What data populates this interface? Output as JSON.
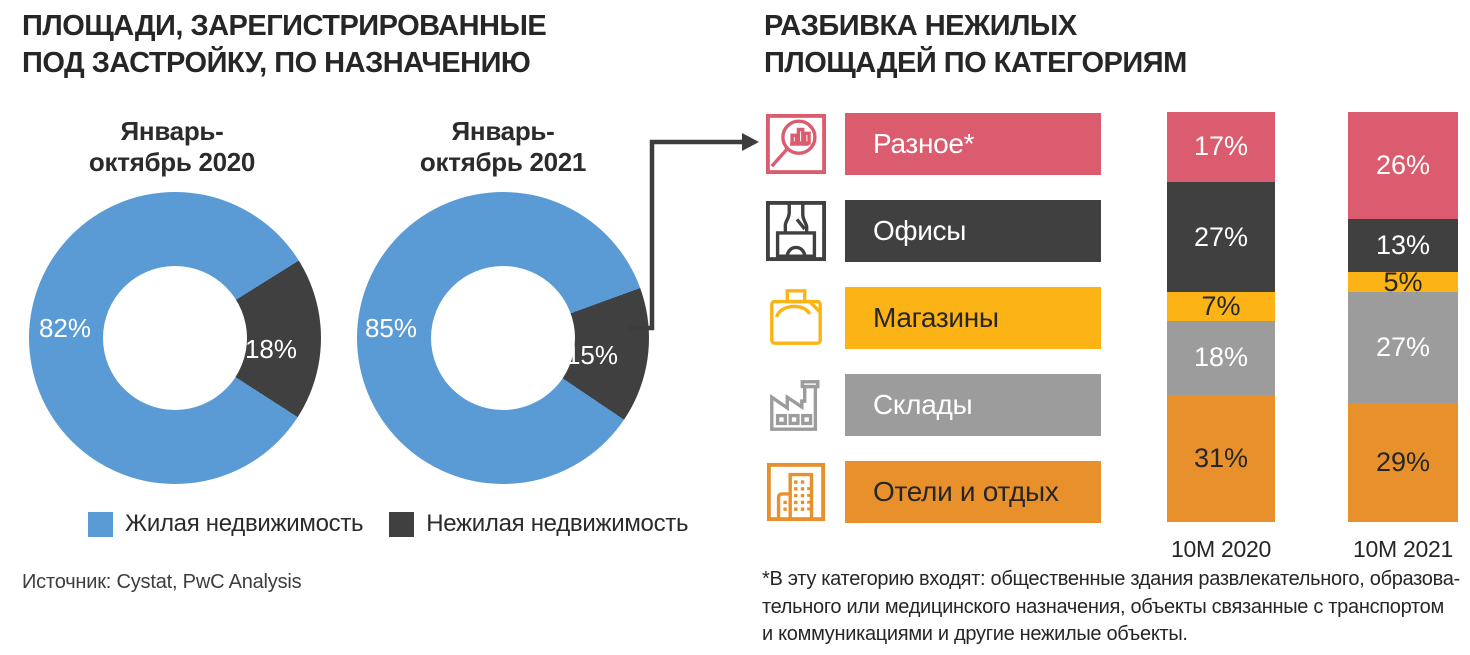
{
  "left_panel": {
    "title": "ПЛОЩАДИ, ЗАРЕГИСТРИРОВАННЫЕ\nПОД ЗАСТРОЙКУ, ПО НАЗНАЧЕНИЮ",
    "legend": [
      {
        "label": "Жилая недвижимость",
        "color": "#5B9BD5"
      },
      {
        "label": "Нежилая недвижимость",
        "color": "#404040"
      }
    ],
    "source": "Источник: Cystat, PwC Analysis"
  },
  "right_panel": {
    "title": "РАЗБИВКА НЕЖИЛЫХ\nПЛОЩАДЕЙ ПО КАТЕГОРИЯМ",
    "categories": [
      {
        "label": "Разное*",
        "icon": "magnifier-chart-icon",
        "color": "#DB5C6E",
        "text_color": "#ffffff"
      },
      {
        "label": "Офисы",
        "icon": "office-building-icon",
        "color": "#404040",
        "text_color": "#ffffff"
      },
      {
        "label": "Магазины",
        "icon": "shopping-bag-icon",
        "color": "#FCB315",
        "text_color": "#262626"
      },
      {
        "label": "Склады",
        "icon": "factory-icon",
        "color": "#9C9C9C",
        "text_color": "#ffffff"
      },
      {
        "label": "Отели и отдых",
        "icon": "hotel-buildings-icon",
        "color": "#E8912C",
        "text_color": "#262626"
      }
    ],
    "footnote": "*В эту категорию входят: общественные здания развлекательного, образова-\nтельного или медицинского назначения, объекты связанные с транспортом\nи коммуникациями и другие нежилые объекты."
  },
  "chart_data": [
    {
      "type": "pie",
      "subtype": "donut",
      "title": "ПЛОЩАДИ, ЗАРЕГИСТРИРОВАННЫЕ ПОД ЗАСТРОЙКУ, ПО НАЗНАЧЕНИЮ",
      "legend_position": "bottom",
      "source": "Источник: Cystat, PwC Analysis",
      "charts": [
        {
          "subtitle": "Январь-\nоктябрь 2020",
          "dark_segment_start_deg": 58,
          "slices": [
            {
              "label": "Жилая недвижимость",
              "value": 82,
              "label_text": "82%",
              "color": "#5B9BD5"
            },
            {
              "label": "Нежилая недвижимость",
              "value": 18,
              "label_text": "18%",
              "color": "#404040"
            }
          ]
        },
        {
          "subtitle": "Январь-\nоктябрь 2021",
          "dark_segment_start_deg": 70,
          "slices": [
            {
              "label": "Жилая недвижимость",
              "value": 85,
              "label_text": "85%",
              "color": "#5B9BD5"
            },
            {
              "label": "Нежилая недвижимость",
              "value": 15,
              "label_text": "15%",
              "color": "#404040"
            }
          ]
        }
      ]
    },
    {
      "type": "bar",
      "subtype": "stacked-100",
      "title": "РАЗБИВКА НЕЖИЛЫХ ПЛОЩАДЕЙ ПО КАТЕГОРИЯМ",
      "categories": [
        "10M 2020",
        "10M 2021"
      ],
      "ylim": [
        0,
        100
      ],
      "grid": false,
      "series": [
        {
          "name": "Разное*",
          "color": "#DB5C6E",
          "label_color": "#ffffff",
          "values": [
            17,
            26
          ]
        },
        {
          "name": "Офисы",
          "color": "#404040",
          "label_color": "#ffffff",
          "values": [
            27,
            13
          ]
        },
        {
          "name": "Магазины",
          "color": "#FCB315",
          "label_color": "#262626",
          "values": [
            7,
            5
          ]
        },
        {
          "name": "Склады",
          "color": "#9C9C9C",
          "label_color": "#ffffff",
          "values": [
            18,
            27
          ]
        },
        {
          "name": "Отели и отдых",
          "color": "#E8912C",
          "label_color": "#262626",
          "values": [
            31,
            29
          ]
        }
      ],
      "footnote": "*В эту категорию входят: общественные здания развлекательного, образовательного или медицинского назначения, объекты связанные с транспортом и коммуникациями и другие нежилые объекты."
    }
  ]
}
